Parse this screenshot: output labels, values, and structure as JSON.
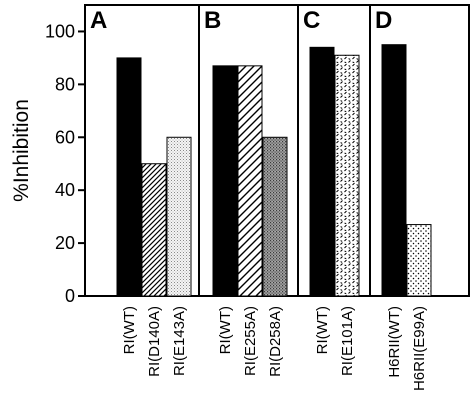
{
  "chart_data": {
    "type": "bar",
    "ylabel": "%Inhibition",
    "ylim": [
      0,
      110
    ],
    "yticks": [
      0,
      20,
      40,
      60,
      80,
      100
    ],
    "grid": false,
    "panels": [
      {
        "label": "A",
        "bars": [
          {
            "category": "RI(WT)",
            "value": 90,
            "fill": "black"
          },
          {
            "category": "RI(D140A)",
            "value": 50,
            "fill": "diagonal-hatch-dense"
          },
          {
            "category": "RI(E143A)",
            "value": 60,
            "fill": "fine-stipple-light"
          }
        ]
      },
      {
        "label": "B",
        "bars": [
          {
            "category": "RI(WT)",
            "value": 87,
            "fill": "black"
          },
          {
            "category": "RI(E255A)",
            "value": 87,
            "fill": "diagonal-hatch-wide"
          },
          {
            "category": "RI(D258A)",
            "value": 60,
            "fill": "dense-stipple-dark"
          }
        ]
      },
      {
        "label": "C",
        "bars": [
          {
            "category": "RI(WT)",
            "value": 94,
            "fill": "black"
          },
          {
            "category": "RI(E101A)",
            "value": 91,
            "fill": "dash-pattern"
          }
        ]
      },
      {
        "label": "D",
        "bars": [
          {
            "category": "H6RII(WT)",
            "value": 95,
            "fill": "black"
          },
          {
            "category": "H6RII(E99A)",
            "value": 27,
            "fill": "dot-pattern"
          }
        ]
      }
    ]
  }
}
